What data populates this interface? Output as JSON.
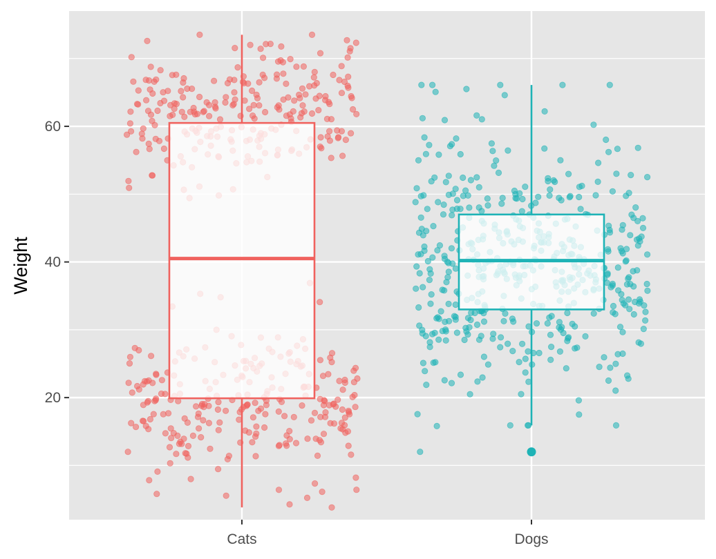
{
  "chart_data": {
    "type": "boxplot",
    "ylabel": "Weight",
    "xlabel": "",
    "title": "",
    "ylim": [
      2,
      77
    ],
    "y_ticks": [
      20,
      40,
      60
    ],
    "y_minor_ticks": [
      10,
      30,
      50,
      70
    ],
    "categories": [
      "Cats",
      "Dogs"
    ],
    "grid": true,
    "legend": "none",
    "colors": {
      "panel_bg": "#e6e6e6",
      "grid": "#ffffff",
      "Cats": "#f0625e",
      "Dogs": "#1eb3b6",
      "tick_text": "#4d4d4d",
      "tick_mark": "#333333"
    },
    "boxes": [
      {
        "category": "Cats",
        "whisker_low": 3.8,
        "q1": 19.9,
        "median": 40.5,
        "q3": 60.5,
        "whisker_high": 73.5,
        "outliers": []
      },
      {
        "category": "Dogs",
        "whisker_low": 15.9,
        "q1": 33.0,
        "median": 40.2,
        "q3": 47.0,
        "whisker_high": 66.1,
        "outliers": [
          12.0
        ]
      }
    ],
    "jitter": {
      "Cats": {
        "n": 500,
        "clusters": [
          {
            "share": 0.5,
            "mean": 62.0,
            "sd": 5.2
          },
          {
            "share": 0.5,
            "mean": 19.5,
            "sd": 5.4
          }
        ],
        "note_points": [
          73.5,
          72.0,
          70.2,
          34.8,
          35.3,
          30.0,
          3.8,
          5.8,
          6.4,
          8.2
        ]
      },
      "Dogs": {
        "n": 500,
        "clusters": [
          {
            "share": 1.0,
            "mean": 40.0,
            "sd": 9.5
          }
        ],
        "note_points": [
          66.1,
          65.5,
          64.6,
          62.2,
          61.6,
          61.2,
          17.5,
          15.8,
          12.0
        ]
      }
    }
  }
}
